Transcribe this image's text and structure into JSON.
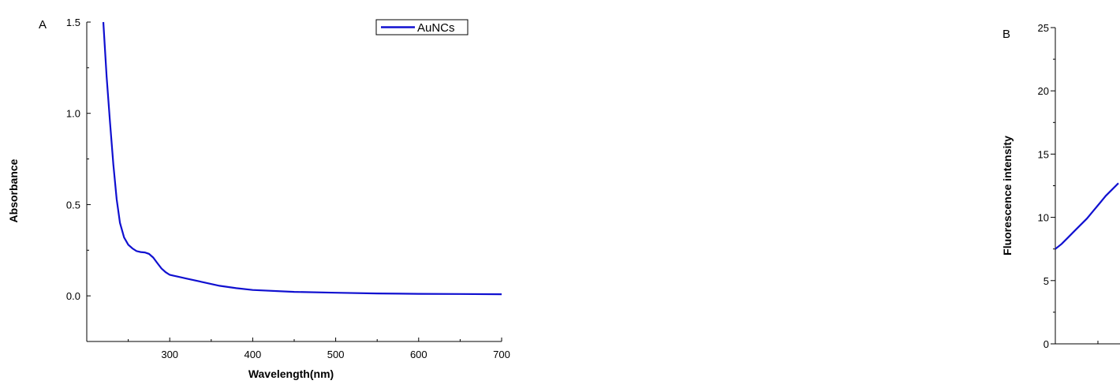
{
  "chart_data": [
    {
      "panel_label": "A",
      "type": "line",
      "xlabel": "Wavelength(nm)",
      "ylabel": "Absorbance",
      "xlim": [
        200,
        700
      ],
      "ylim": [
        -0.25,
        1.5
      ],
      "x_ticks": [
        300,
        400,
        500,
        600,
        700
      ],
      "x_tick_labels": [
        "300",
        "400",
        "500",
        "600",
        "700"
      ],
      "y_ticks": [
        0.0,
        0.5,
        1.0,
        1.5
      ],
      "y_tick_labels": [
        "0.0",
        "0.5",
        "1.0",
        "1.5"
      ],
      "legend_position": "top-right",
      "series": [
        {
          "name": "AuNCs",
          "color": "#1010d0",
          "x": [
            220,
            224,
            228,
            232,
            236,
            240,
            245,
            250,
            255,
            260,
            265,
            270,
            275,
            280,
            285,
            290,
            295,
            300,
            305,
            310,
            320,
            340,
            360,
            380,
            400,
            450,
            500,
            550,
            600,
            650,
            700
          ],
          "y": [
            1.5,
            1.2,
            0.95,
            0.72,
            0.53,
            0.4,
            0.32,
            0.28,
            0.26,
            0.245,
            0.24,
            0.238,
            0.23,
            0.21,
            0.18,
            0.15,
            0.13,
            0.115,
            0.11,
            0.105,
            0.095,
            0.075,
            0.055,
            0.042,
            0.032,
            0.022,
            0.017,
            0.013,
            0.011,
            0.01,
            0.009
          ]
        }
      ]
    },
    {
      "panel_label": "B",
      "type": "line",
      "xlabel": "",
      "ylabel": "Fluorescence intensity",
      "ylim": [
        0,
        25
      ],
      "y_ticks": [
        0,
        5,
        10,
        15,
        20,
        25
      ],
      "y_tick_labels": [
        "0",
        "5",
        "10",
        "15",
        "20",
        "25"
      ],
      "series": [
        {
          "color": "#1010d0",
          "x": [
            0,
            0.5,
            1,
            1.5,
            2,
            2.5,
            3,
            3.5,
            4,
            4.5,
            5
          ],
          "y": [
            7.5,
            7.9,
            8.4,
            8.9,
            9.4,
            9.9,
            10.5,
            11.1,
            11.7,
            12.2,
            12.7
          ]
        }
      ]
    }
  ]
}
